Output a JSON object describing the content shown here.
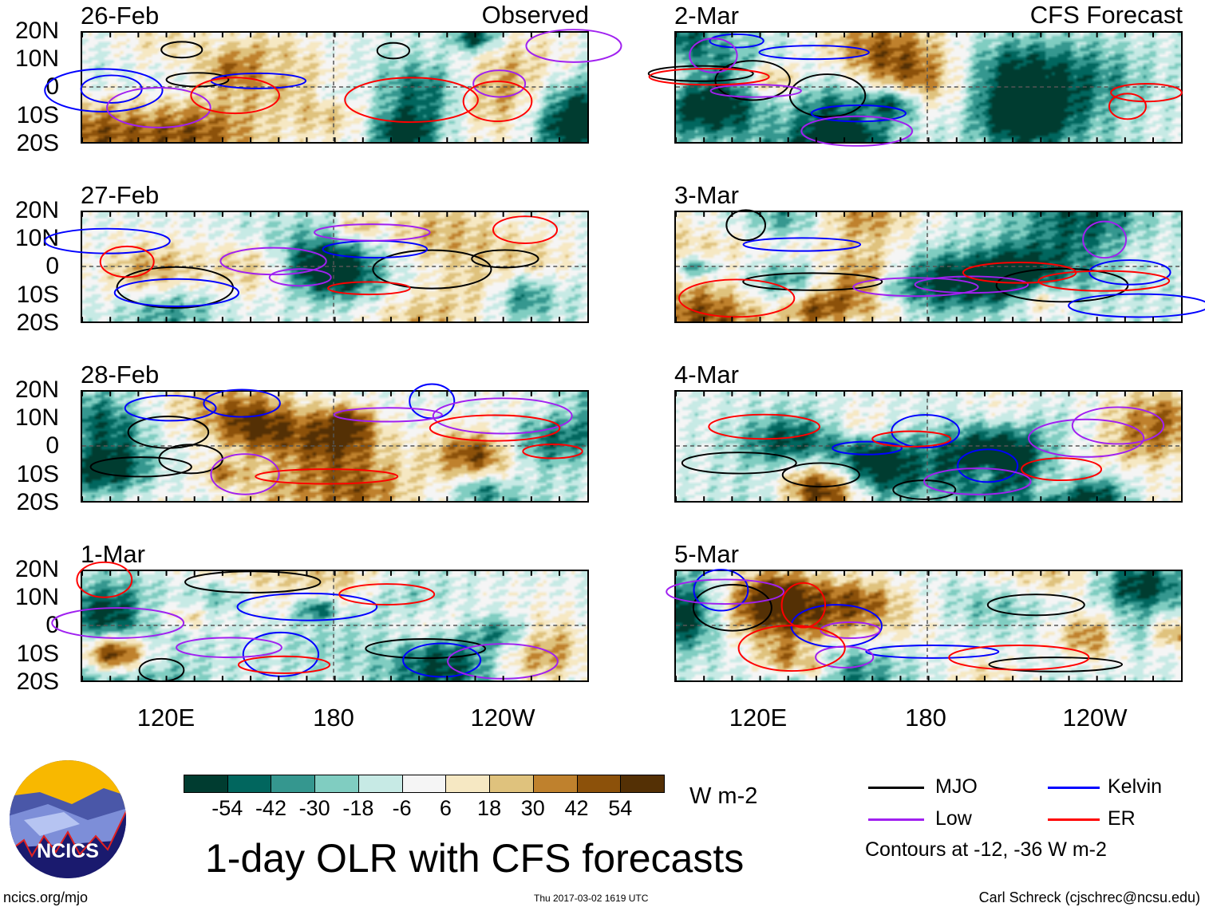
{
  "chart_data": {
    "type": "heatmap",
    "title": "1-day OLR with CFS forecasts",
    "variable": "OLR anomaly",
    "units": "W m-2",
    "lat_labels": [
      "20N",
      "10N",
      "0",
      "10S",
      "20S"
    ],
    "lon_labels": [
      "120E",
      "180",
      "120W"
    ],
    "columns": [
      {
        "title": "Observed",
        "panels": [
          "26-Feb",
          "27-Feb",
          "28-Feb",
          "1-Mar"
        ]
      },
      {
        "title": "CFS Forecast",
        "panels": [
          "2-Mar",
          "3-Mar",
          "4-Mar",
          "5-Mar"
        ]
      }
    ],
    "colorbar": {
      "labels": [
        "-54",
        "-42",
        "-30",
        "-18",
        "-6",
        "6",
        "18",
        "30",
        "42",
        "54"
      ],
      "colors": [
        "#003c30",
        "#01665e",
        "#35978f",
        "#80cdc1",
        "#c7eae5",
        "#f5f5f5",
        "#f6e8c3",
        "#dfc27d",
        "#bf812d",
        "#8c510a",
        "#543005"
      ]
    },
    "contour_legend": [
      {
        "label": "MJO",
        "color": "#000000"
      },
      {
        "label": "Kelvin",
        "color": "#0000ff"
      },
      {
        "label": "Low",
        "color": "#a020f0"
      },
      {
        "label": "ER",
        "color": "#ff0000"
      }
    ],
    "contour_note": "Contours at -12, -36 W m-2"
  },
  "footer": {
    "left": "ncics.org/mjo",
    "center": "Thu 2017-03-02 1619 UTC",
    "right": "Carl Schreck (cjschrec@ncsu.edu)"
  },
  "logo": {
    "text": "NCICS"
  }
}
